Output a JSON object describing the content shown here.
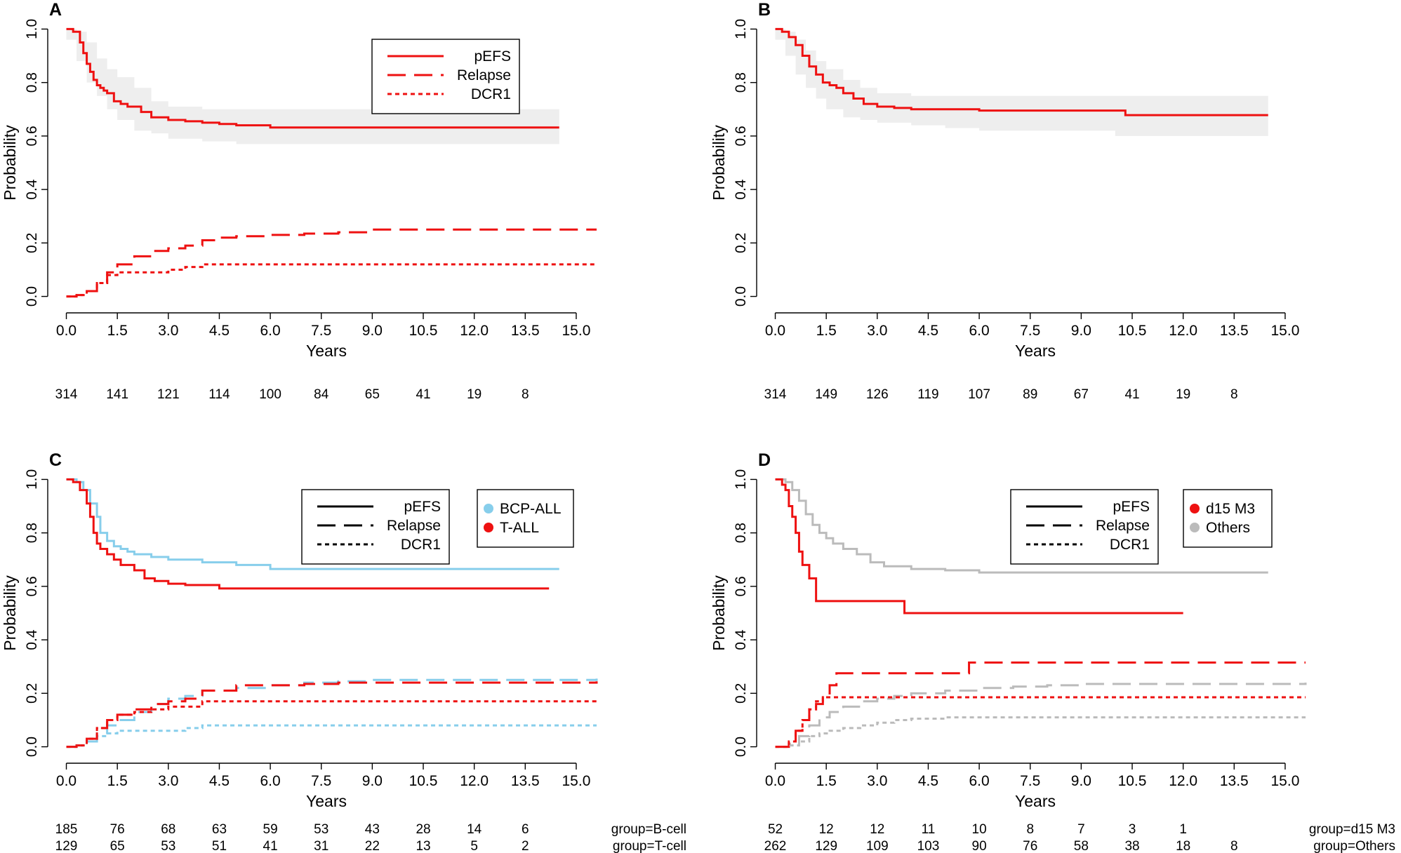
{
  "colors": {
    "red": "#ee1111",
    "blue": "#87ceeb",
    "gray": "#bbbbbb",
    "band": "#eeeeee"
  },
  "chart_data": [
    {
      "panel": "A",
      "type": "line",
      "xlabel": "Years",
      "ylabel": "Probability",
      "xlim": [
        -0.3,
        15.6
      ],
      "ylim": [
        -0.03,
        1.03
      ],
      "xticks": [
        "0.0",
        "1.5",
        "3.0",
        "4.5",
        "6.0",
        "7.5",
        "9.0",
        "10.5",
        "12.0",
        "13.5",
        "15.0"
      ],
      "yticks": [
        "0.0",
        "0.2",
        "0.4",
        "0.6",
        "0.8",
        "1.0"
      ],
      "legend_lines": [
        {
          "label": "pEFS",
          "style": "solid"
        },
        {
          "label": "Relapse",
          "style": "dashed"
        },
        {
          "label": "DCR1",
          "style": "dotted"
        }
      ],
      "legend_groups": [],
      "risk_table": {
        "times": [
          0,
          1.5,
          3,
          4.5,
          6,
          7.5,
          9,
          10.5,
          12,
          13.5
        ],
        "rows": [
          {
            "label": "",
            "values": [
              "314",
              "141",
              "121",
              "114",
              "100",
              "84",
              "65",
              "41",
              "19",
              "8"
            ]
          }
        ]
      },
      "band": {
        "x": [
          0,
          0.3,
          0.6,
          0.9,
          1.2,
          1.5,
          2,
          2.5,
          3,
          4,
          5,
          6,
          14.5
        ],
        "upper": [
          1,
          0.99,
          0.95,
          0.89,
          0.85,
          0.82,
          0.78,
          0.73,
          0.71,
          0.7,
          0.7,
          0.7,
          0.7
        ],
        "lower": [
          1,
          0.96,
          0.88,
          0.8,
          0.75,
          0.7,
          0.66,
          0.62,
          0.61,
          0.59,
          0.58,
          0.57,
          0.57
        ]
      },
      "series": [
        {
          "name": "pEFS",
          "color": "red",
          "dash": "solid",
          "x": [
            0,
            0.2,
            0.4,
            0.5,
            0.6,
            0.7,
            0.8,
            0.9,
            1,
            1.1,
            1.2,
            1.4,
            1.6,
            1.8,
            2.2,
            2.5,
            3,
            3.5,
            4,
            4.5,
            5,
            6,
            14.5
          ],
          "y": [
            1,
            0.99,
            0.95,
            0.91,
            0.87,
            0.84,
            0.81,
            0.79,
            0.78,
            0.77,
            0.76,
            0.73,
            0.72,
            0.71,
            0.69,
            0.67,
            0.66,
            0.655,
            0.65,
            0.645,
            0.64,
            0.632,
            0.632
          ]
        },
        {
          "name": "Relapse",
          "color": "red",
          "dash": "dashed",
          "x": [
            0,
            0.3,
            0.6,
            0.9,
            1.2,
            1.5,
            2,
            2.5,
            3,
            3.5,
            4,
            4.5,
            5,
            6,
            7,
            8,
            9,
            15.6
          ],
          "y": [
            0,
            0.005,
            0.02,
            0.05,
            0.09,
            0.12,
            0.15,
            0.17,
            0.18,
            0.19,
            0.21,
            0.22,
            0.225,
            0.23,
            0.235,
            0.24,
            0.25,
            0.25
          ]
        },
        {
          "name": "DCR1",
          "color": "red",
          "dash": "dotted",
          "x": [
            0,
            0.3,
            0.6,
            0.9,
            1.2,
            1.5,
            2,
            3,
            3.5,
            4,
            15.6
          ],
          "y": [
            0,
            0.005,
            0.02,
            0.05,
            0.08,
            0.09,
            0.09,
            0.1,
            0.11,
            0.12,
            0.12
          ]
        }
      ]
    },
    {
      "panel": "B",
      "type": "line",
      "xlabel": "Years",
      "ylabel": "Probability",
      "xlim": [
        -0.3,
        15.6
      ],
      "ylim": [
        -0.03,
        1.03
      ],
      "xticks": [
        "0.0",
        "1.5",
        "3.0",
        "4.5",
        "6.0",
        "7.5",
        "9.0",
        "10.5",
        "12.0",
        "13.5",
        "15.0"
      ],
      "yticks": [
        "0.0",
        "0.2",
        "0.4",
        "0.6",
        "0.8",
        "1.0"
      ],
      "legend_lines": [],
      "legend_groups": [],
      "risk_table": {
        "times": [
          0,
          1.5,
          3,
          4.5,
          6,
          7.5,
          9,
          10.5,
          12,
          13.5
        ],
        "rows": [
          {
            "label": "",
            "values": [
              "314",
              "149",
              "126",
              "119",
              "107",
              "89",
              "67",
              "41",
              "19",
              "8"
            ]
          }
        ]
      },
      "band": {
        "x": [
          0,
          0.3,
          0.6,
          0.9,
          1.2,
          1.5,
          2,
          2.5,
          3,
          4,
          5,
          6,
          10,
          14.5
        ],
        "upper": [
          1,
          0.99,
          0.96,
          0.92,
          0.88,
          0.85,
          0.81,
          0.78,
          0.76,
          0.75,
          0.75,
          0.75,
          0.75,
          0.75
        ],
        "lower": [
          1,
          0.96,
          0.9,
          0.83,
          0.78,
          0.74,
          0.7,
          0.67,
          0.66,
          0.65,
          0.64,
          0.63,
          0.62,
          0.6
        ]
      },
      "series": [
        {
          "name": "pEFS",
          "color": "red",
          "dash": "solid",
          "x": [
            0,
            0.2,
            0.4,
            0.6,
            0.8,
            1,
            1.2,
            1.4,
            1.6,
            1.8,
            2,
            2.3,
            2.6,
            3,
            3.5,
            4,
            5,
            6,
            8,
            10,
            10.3,
            14.5
          ],
          "y": [
            1,
            0.99,
            0.97,
            0.94,
            0.9,
            0.86,
            0.83,
            0.8,
            0.79,
            0.78,
            0.76,
            0.74,
            0.72,
            0.71,
            0.705,
            0.7,
            0.7,
            0.695,
            0.695,
            0.695,
            0.678,
            0.678
          ]
        }
      ]
    },
    {
      "panel": "C",
      "type": "line",
      "xlabel": "Years",
      "ylabel": "Probability",
      "xlim": [
        -0.3,
        15.6
      ],
      "ylim": [
        -0.03,
        1.03
      ],
      "xticks": [
        "0.0",
        "1.5",
        "3.0",
        "4.5",
        "6.0",
        "7.5",
        "9.0",
        "10.5",
        "12.0",
        "13.5",
        "15.0"
      ],
      "yticks": [
        "0.0",
        "0.2",
        "0.4",
        "0.6",
        "0.8",
        "1.0"
      ],
      "legend_lines": [
        {
          "label": "pEFS",
          "style": "solid"
        },
        {
          "label": "Relapse",
          "style": "dashed"
        },
        {
          "label": "DCR1",
          "style": "dotted"
        }
      ],
      "legend_groups": [
        {
          "label": "BCP-ALL",
          "color": "blue"
        },
        {
          "label": "T-ALL",
          "color": "red"
        }
      ],
      "risk_table": {
        "times": [
          0,
          1.5,
          3,
          4.5,
          6,
          7.5,
          9,
          10.5,
          12,
          13.5
        ],
        "rows": [
          {
            "label": "group=B-cell",
            "values": [
              "185",
              "76",
              "68",
              "63",
              "59",
              "53",
              "43",
              "28",
              "14",
              "6"
            ]
          },
          {
            "label": "group=T-cell",
            "values": [
              "129",
              "65",
              "53",
              "51",
              "41",
              "31",
              "22",
              "13",
              "5",
              "2"
            ]
          }
        ]
      },
      "band": null,
      "series": [
        {
          "name": "BCP-ALL pEFS",
          "color": "blue",
          "dash": "solid",
          "x": [
            0,
            0.3,
            0.5,
            0.7,
            0.9,
            1,
            1.2,
            1.4,
            1.6,
            1.8,
            2,
            2.5,
            3,
            4,
            5,
            6,
            14.5
          ],
          "y": [
            1,
            0.99,
            0.96,
            0.91,
            0.86,
            0.8,
            0.77,
            0.75,
            0.74,
            0.73,
            0.72,
            0.71,
            0.7,
            0.69,
            0.68,
            0.665,
            0.665
          ]
        },
        {
          "name": "T-ALL pEFS",
          "color": "red",
          "dash": "solid",
          "x": [
            0,
            0.2,
            0.4,
            0.6,
            0.7,
            0.8,
            0.9,
            1,
            1.2,
            1.4,
            1.6,
            1.8,
            2,
            2.3,
            2.6,
            3,
            3.5,
            4.5,
            14.2
          ],
          "y": [
            1,
            0.99,
            0.96,
            0.91,
            0.86,
            0.8,
            0.76,
            0.74,
            0.72,
            0.7,
            0.68,
            0.68,
            0.66,
            0.63,
            0.62,
            0.61,
            0.605,
            0.592,
            0.592
          ]
        },
        {
          "name": "BCP-ALL Relapse",
          "color": "blue",
          "dash": "dashed",
          "x": [
            0,
            0.3,
            0.6,
            0.9,
            1.2,
            1.5,
            2,
            2.5,
            3,
            3.5,
            4,
            5,
            6,
            7,
            8,
            9,
            15.6
          ],
          "y": [
            0,
            0.005,
            0.02,
            0.05,
            0.08,
            0.1,
            0.13,
            0.16,
            0.18,
            0.19,
            0.21,
            0.22,
            0.23,
            0.24,
            0.245,
            0.25,
            0.255
          ]
        },
        {
          "name": "T-ALL Relapse",
          "color": "red",
          "dash": "dashed",
          "x": [
            0,
            0.3,
            0.6,
            0.9,
            1.2,
            1.5,
            2,
            2.5,
            3,
            3.5,
            4,
            5,
            6,
            7,
            8,
            9,
            15.6
          ],
          "y": [
            0,
            0.005,
            0.03,
            0.07,
            0.1,
            0.12,
            0.14,
            0.16,
            0.17,
            0.18,
            0.21,
            0.23,
            0.23,
            0.235,
            0.24,
            0.24,
            0.245
          ]
        },
        {
          "name": "BCP-ALL DCR1",
          "color": "blue",
          "dash": "dotted",
          "x": [
            0,
            0.3,
            0.6,
            0.9,
            1.2,
            1.5,
            2,
            3,
            3.5,
            4,
            15.6
          ],
          "y": [
            0,
            0.005,
            0.02,
            0.04,
            0.05,
            0.06,
            0.06,
            0.06,
            0.07,
            0.08,
            0.08
          ]
        },
        {
          "name": "T-ALL DCR1",
          "color": "red",
          "dash": "dotted",
          "x": [
            0,
            0.3,
            0.6,
            0.9,
            1.2,
            1.5,
            2,
            2.5,
            3,
            3.5,
            4,
            15.6
          ],
          "y": [
            0,
            0.005,
            0.03,
            0.07,
            0.1,
            0.12,
            0.13,
            0.14,
            0.15,
            0.15,
            0.17,
            0.17
          ]
        }
      ]
    },
    {
      "panel": "D",
      "type": "line",
      "xlabel": "Years",
      "ylabel": "Probability",
      "xlim": [
        -0.3,
        15.6
      ],
      "ylim": [
        -0.03,
        1.03
      ],
      "xticks": [
        "0.0",
        "1.5",
        "3.0",
        "4.5",
        "6.0",
        "7.5",
        "9.0",
        "10.5",
        "12.0",
        "13.5",
        "15.0"
      ],
      "yticks": [
        "0.0",
        "0.2",
        "0.4",
        "0.6",
        "0.8",
        "1.0"
      ],
      "legend_lines": [
        {
          "label": "pEFS",
          "style": "solid"
        },
        {
          "label": "Relapse",
          "style": "dashed"
        },
        {
          "label": "DCR1",
          "style": "dotted"
        }
      ],
      "legend_groups": [
        {
          "label": "d15 M3",
          "color": "red"
        },
        {
          "label": "Others",
          "color": "gray"
        }
      ],
      "risk_table": {
        "times": [
          0,
          1.5,
          3,
          4.5,
          6,
          7.5,
          9,
          10.5,
          12,
          13.5
        ],
        "rows": [
          {
            "label": "group=d15 M3",
            "values": [
              "52",
              "12",
              "12",
              "11",
              "10",
              "8",
              "7",
              "3",
              "1",
              ""
            ]
          },
          {
            "label": "group=Others",
            "values": [
              "262",
              "129",
              "109",
              "103",
              "90",
              "76",
              "58",
              "38",
              "18",
              "8"
            ]
          }
        ]
      },
      "band": null,
      "series": [
        {
          "name": "Others pEFS",
          "color": "gray",
          "dash": "solid",
          "x": [
            0,
            0.3,
            0.5,
            0.7,
            0.9,
            1.1,
            1.3,
            1.5,
            1.7,
            2,
            2.4,
            2.8,
            3.2,
            4,
            5,
            6,
            14.5
          ],
          "y": [
            1,
            0.99,
            0.96,
            0.92,
            0.87,
            0.83,
            0.8,
            0.78,
            0.76,
            0.74,
            0.72,
            0.69,
            0.675,
            0.665,
            0.66,
            0.652,
            0.652
          ]
        },
        {
          "name": "d15 M3 pEFS",
          "color": "red",
          "dash": "solid",
          "x": [
            0,
            0.2,
            0.3,
            0.4,
            0.5,
            0.6,
            0.7,
            0.8,
            1,
            1.2,
            3.8,
            12
          ],
          "y": [
            1,
            0.98,
            0.96,
            0.9,
            0.86,
            0.8,
            0.73,
            0.68,
            0.63,
            0.545,
            0.5,
            0.5
          ]
        },
        {
          "name": "Others Relapse",
          "color": "gray",
          "dash": "dashed",
          "x": [
            0,
            0.4,
            0.7,
            1,
            1.3,
            1.6,
            2,
            2.5,
            3,
            3.5,
            4,
            5,
            6,
            7,
            8,
            9,
            15.6
          ],
          "y": [
            0,
            0.01,
            0.04,
            0.08,
            0.11,
            0.13,
            0.15,
            0.17,
            0.18,
            0.19,
            0.2,
            0.21,
            0.22,
            0.225,
            0.23,
            0.235,
            0.24
          ]
        },
        {
          "name": "d15 M3 Relapse",
          "color": "red",
          "dash": "dashed",
          "x": [
            0,
            0.4,
            0.6,
            0.8,
            1,
            1.2,
            1.4,
            1.6,
            1.8,
            5.7,
            15.6
          ],
          "y": [
            0,
            0.02,
            0.06,
            0.1,
            0.14,
            0.16,
            0.19,
            0.23,
            0.275,
            0.315,
            0.315
          ]
        },
        {
          "name": "Others DCR1",
          "color": "gray",
          "dash": "dotted",
          "x": [
            0,
            0.4,
            0.7,
            1,
            1.3,
            1.6,
            2,
            2.5,
            3,
            3.5,
            4,
            5,
            6,
            15.6
          ],
          "y": [
            0,
            0.005,
            0.02,
            0.04,
            0.05,
            0.06,
            0.07,
            0.08,
            0.09,
            0.1,
            0.105,
            0.11,
            0.11,
            0.11
          ]
        },
        {
          "name": "d15 M3 DCR1",
          "color": "red",
          "dash": "dotted",
          "x": [
            0,
            0.4,
            0.6,
            0.8,
            1,
            1.2,
            1.4,
            1.8,
            15.6
          ],
          "y": [
            0,
            0.02,
            0.06,
            0.1,
            0.14,
            0.17,
            0.185,
            0.185,
            0.185
          ]
        }
      ]
    }
  ]
}
